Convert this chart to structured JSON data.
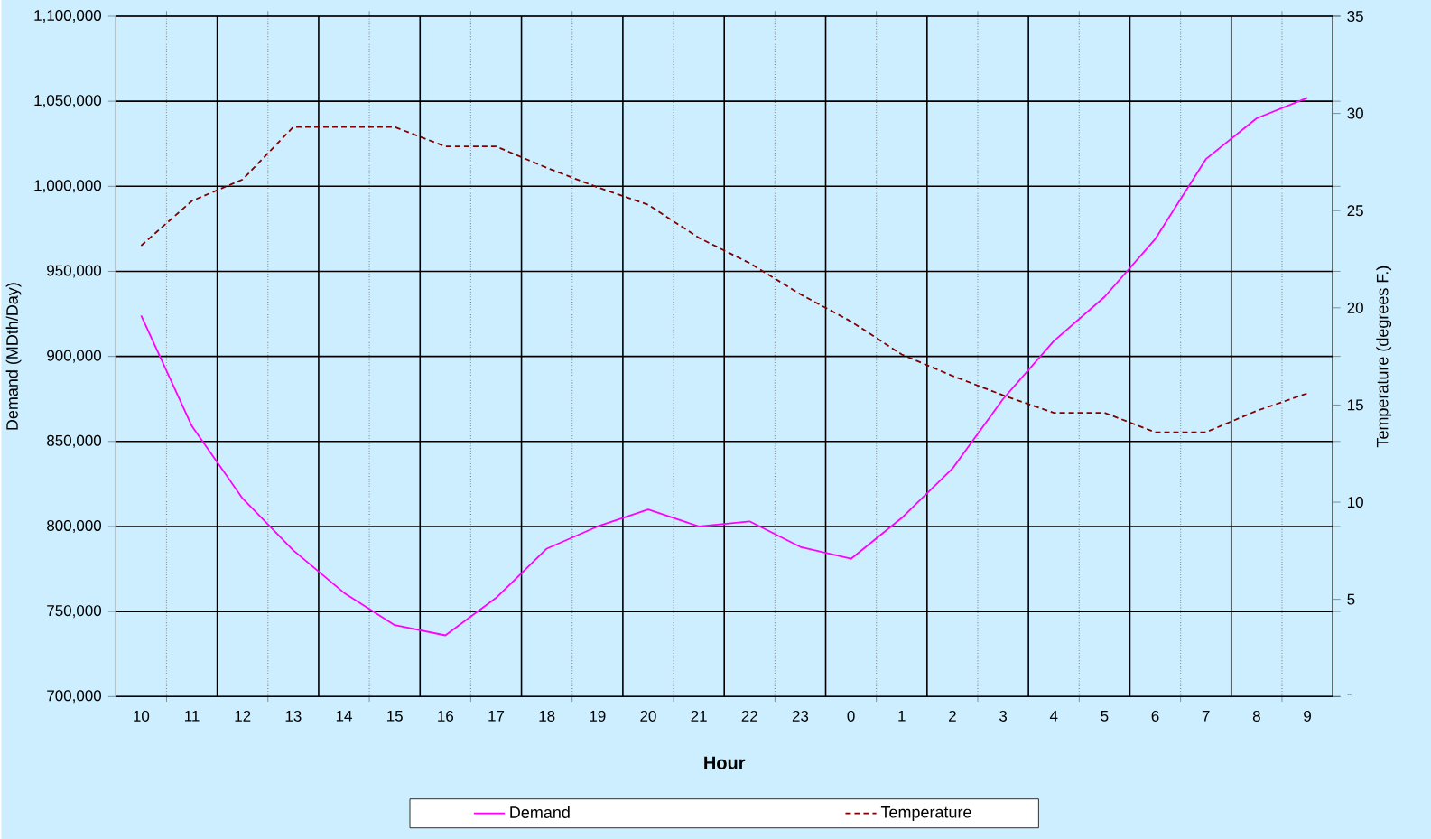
{
  "chart_data": {
    "type": "line",
    "xlabel": "Hour",
    "ylabel": "Demand (MDth/Day)",
    "y2label": "Temperature (degrees F.)",
    "categories": [
      "10",
      "11",
      "12",
      "13",
      "14",
      "15",
      "16",
      "17",
      "18",
      "19",
      "20",
      "21",
      "22",
      "23",
      "0",
      "1",
      "2",
      "3",
      "4",
      "5",
      "6",
      "7",
      "8",
      "9"
    ],
    "series": [
      {
        "name": "Demand",
        "color": "#ff00ff",
        "line_style": "solid",
        "values": [
          924000,
          859000,
          816500,
          786000,
          761000,
          742000,
          736000,
          758000,
          787000,
          800000,
          810000,
          800000,
          803000,
          788000,
          781000,
          805000,
          834000,
          875000,
          909000,
          935000,
          969000,
          1016000,
          1040000,
          1052000
        ]
      },
      {
        "name": "Temperature",
        "color": "#800000",
        "line_style": "dashed",
        "axis": "y2",
        "values": [
          23.2,
          25.5,
          26.6,
          29.3,
          29.3,
          29.3,
          28.3,
          28.3,
          27.2,
          26.2,
          25.3,
          23.6,
          22.3,
          20.7,
          19.3,
          17.6,
          16.5,
          15.5,
          14.6,
          14.6,
          13.6,
          13.6,
          14.7,
          15.6
        ]
      }
    ],
    "ylim": [
      700000,
      1100000
    ],
    "yticks": [
      {
        "value": 700000,
        "label": "700,000"
      },
      {
        "value": 750000,
        "label": "750,000"
      },
      {
        "value": 800000,
        "label": "800,000"
      },
      {
        "value": 850000,
        "label": "850,000"
      },
      {
        "value": 900000,
        "label": "900,000"
      },
      {
        "value": 950000,
        "label": "950,000"
      },
      {
        "value": 1000000,
        "label": "1,000,000"
      },
      {
        "value": 1050000,
        "label": "1,050,000"
      },
      {
        "value": 1100000,
        "label": "1,100,000"
      }
    ],
    "y2lim": [
      0,
      35
    ],
    "y2ticks": [
      {
        "value": 0,
        "label": "-"
      },
      5,
      10,
      15,
      20,
      25,
      30,
      35
    ],
    "grid": true,
    "legend": "bottom"
  }
}
